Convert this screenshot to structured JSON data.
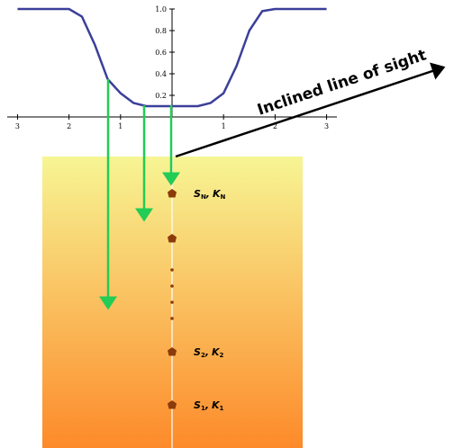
{
  "chart_data": {
    "type": "line",
    "x": [
      -3,
      -2.75,
      -2.5,
      -2.25,
      -2,
      -1.75,
      -1.5,
      -1.25,
      -1,
      -0.75,
      -0.5,
      -0.25,
      0,
      0.25,
      0.5,
      0.75,
      1,
      1.25,
      1.5,
      1.75,
      2,
      2.25,
      2.5,
      2.75,
      3
    ],
    "values": [
      1.0,
      1.0,
      1.0,
      1.0,
      1.0,
      0.93,
      0.67,
      0.35,
      0.22,
      0.13,
      0.1,
      0.1,
      0.1,
      0.1,
      0.1,
      0.13,
      0.22,
      0.47,
      0.8,
      0.98,
      1.0,
      1.0,
      1.0,
      1.0,
      1.0
    ],
    "color": "#3b3f99",
    "xlim": [
      -3.2,
      3.2
    ],
    "ylim": [
      0,
      1.0
    ],
    "xticks": [
      {
        "value": -3,
        "label": "3"
      },
      {
        "value": -2,
        "label": "2"
      },
      {
        "value": -1,
        "label": "1"
      },
      {
        "value": 1,
        "label": "1"
      },
      {
        "value": 2,
        "label": "2"
      },
      {
        "value": 3,
        "label": "3"
      }
    ],
    "yticks": [
      0.2,
      0.4,
      0.6,
      {
        "value": 0.8,
        "label": "0.8"
      },
      {
        "value": 1.0,
        "label": "1.0"
      }
    ]
  },
  "annotation": "Inclined line of sight",
  "sources": [
    {
      "s": "S",
      "s_sub": "N",
      "sep": ",",
      "k": "K",
      "k_sub": "N"
    },
    {
      "s": "S",
      "s_sub": "2",
      "sep": ",",
      "k": "K",
      "k_sub": "2"
    },
    {
      "s": "S",
      "s_sub": "1",
      "sep": ",",
      "k": "K",
      "k_sub": "1"
    }
  ]
}
